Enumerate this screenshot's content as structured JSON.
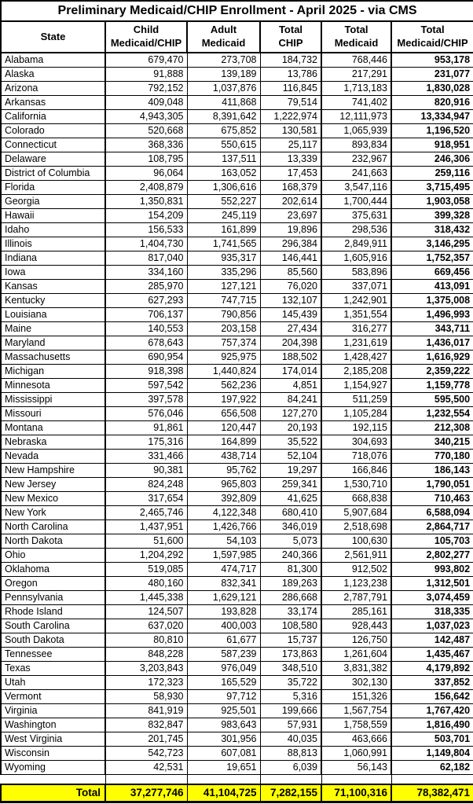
{
  "title": "Preliminary Medicaid/CHIP Enrollment - April 2025 - via CMS",
  "colors": {
    "total_row_bg": "#FFFF00",
    "border": "#000000",
    "background": "#FFFFFF",
    "text": "#000000"
  },
  "chart_data": {
    "type": "table",
    "title": "Preliminary Medicaid/CHIP Enrollment - April 2025 - via CMS",
    "columns": [
      "State",
      "Child Medicaid/CHIP",
      "Adult Medicaid",
      "Total CHIP",
      "Total Medicaid",
      "Total Medicaid/CHIP"
    ],
    "header_lines": [
      [
        "State",
        ""
      ],
      [
        "Child",
        "Medicaid/CHIP"
      ],
      [
        "Adult",
        "Medicaid"
      ],
      [
        "Total",
        "CHIP"
      ],
      [
        "Total",
        "Medicaid"
      ],
      [
        "Total",
        "Medicaid/CHIP"
      ]
    ],
    "rows": [
      [
        "Alabama",
        "679,470",
        "273,708",
        "184,732",
        "768,446",
        "953,178"
      ],
      [
        "Alaska",
        "91,888",
        "139,189",
        "13,786",
        "217,291",
        "231,077"
      ],
      [
        "Arizona",
        "792,152",
        "1,037,876",
        "116,845",
        "1,713,183",
        "1,830,028"
      ],
      [
        "Arkansas",
        "409,048",
        "411,868",
        "79,514",
        "741,402",
        "820,916"
      ],
      [
        "California",
        "4,943,305",
        "8,391,642",
        "1,222,974",
        "12,111,973",
        "13,334,947"
      ],
      [
        "Colorado",
        "520,668",
        "675,852",
        "130,581",
        "1,065,939",
        "1,196,520"
      ],
      [
        "Connecticut",
        "368,336",
        "550,615",
        "25,117",
        "893,834",
        "918,951"
      ],
      [
        "Delaware",
        "108,795",
        "137,511",
        "13,339",
        "232,967",
        "246,306"
      ],
      [
        "District of Columbia",
        "96,064",
        "163,052",
        "17,453",
        "241,663",
        "259,116"
      ],
      [
        "Florida",
        "2,408,879",
        "1,306,616",
        "168,379",
        "3,547,116",
        "3,715,495"
      ],
      [
        "Georgia",
        "1,350,831",
        "552,227",
        "202,614",
        "1,700,444",
        "1,903,058"
      ],
      [
        "Hawaii",
        "154,209",
        "245,119",
        "23,697",
        "375,631",
        "399,328"
      ],
      [
        "Idaho",
        "156,533",
        "161,899",
        "19,896",
        "298,536",
        "318,432"
      ],
      [
        "Illinois",
        "1,404,730",
        "1,741,565",
        "296,384",
        "2,849,911",
        "3,146,295"
      ],
      [
        "Indiana",
        "817,040",
        "935,317",
        "146,441",
        "1,605,916",
        "1,752,357"
      ],
      [
        "Iowa",
        "334,160",
        "335,296",
        "85,560",
        "583,896",
        "669,456"
      ],
      [
        "Kansas",
        "285,970",
        "127,121",
        "76,020",
        "337,071",
        "413,091"
      ],
      [
        "Kentucky",
        "627,293",
        "747,715",
        "132,107",
        "1,242,901",
        "1,375,008"
      ],
      [
        "Louisiana",
        "706,137",
        "790,856",
        "145,439",
        "1,351,554",
        "1,496,993"
      ],
      [
        "Maine",
        "140,553",
        "203,158",
        "27,434",
        "316,277",
        "343,711"
      ],
      [
        "Maryland",
        "678,643",
        "757,374",
        "204,398",
        "1,231,619",
        "1,436,017"
      ],
      [
        "Massachusetts",
        "690,954",
        "925,975",
        "188,502",
        "1,428,427",
        "1,616,929"
      ],
      [
        "Michigan",
        "918,398",
        "1,440,824",
        "174,014",
        "2,185,208",
        "2,359,222"
      ],
      [
        "Minnesota",
        "597,542",
        "562,236",
        "4,851",
        "1,154,927",
        "1,159,778"
      ],
      [
        "Mississippi",
        "397,578",
        "197,922",
        "84,241",
        "511,259",
        "595,500"
      ],
      [
        "Missouri",
        "576,046",
        "656,508",
        "127,270",
        "1,105,284",
        "1,232,554"
      ],
      [
        "Montana",
        "91,861",
        "120,447",
        "20,193",
        "192,115",
        "212,308"
      ],
      [
        "Nebraska",
        "175,316",
        "164,899",
        "35,522",
        "304,693",
        "340,215"
      ],
      [
        "Nevada",
        "331,466",
        "438,714",
        "52,104",
        "718,076",
        "770,180"
      ],
      [
        "New Hampshire",
        "90,381",
        "95,762",
        "19,297",
        "166,846",
        "186,143"
      ],
      [
        "New Jersey",
        "824,248",
        "965,803",
        "259,341",
        "1,530,710",
        "1,790,051"
      ],
      [
        "New Mexico",
        "317,654",
        "392,809",
        "41,625",
        "668,838",
        "710,463"
      ],
      [
        "New York",
        "2,465,746",
        "4,122,348",
        "680,410",
        "5,907,684",
        "6,588,094"
      ],
      [
        "North Carolina",
        "1,437,951",
        "1,426,766",
        "346,019",
        "2,518,698",
        "2,864,717"
      ],
      [
        "North Dakota",
        "51,600",
        "54,103",
        "5,073",
        "100,630",
        "105,703"
      ],
      [
        "Ohio",
        "1,204,292",
        "1,597,985",
        "240,366",
        "2,561,911",
        "2,802,277"
      ],
      [
        "Oklahoma",
        "519,085",
        "474,717",
        "81,300",
        "912,502",
        "993,802"
      ],
      [
        "Oregon",
        "480,160",
        "832,341",
        "189,263",
        "1,123,238",
        "1,312,501"
      ],
      [
        "Pennsylvania",
        "1,445,338",
        "1,629,121",
        "286,668",
        "2,787,791",
        "3,074,459"
      ],
      [
        "Rhode Island",
        "124,507",
        "193,828",
        "33,174",
        "285,161",
        "318,335"
      ],
      [
        "South Carolina",
        "637,020",
        "400,003",
        "108,580",
        "928,443",
        "1,037,023"
      ],
      [
        "South Dakota",
        "80,810",
        "61,677",
        "15,737",
        "126,750",
        "142,487"
      ],
      [
        "Tennessee",
        "848,228",
        "587,239",
        "173,863",
        "1,261,604",
        "1,435,467"
      ],
      [
        "Texas",
        "3,203,843",
        "976,049",
        "348,510",
        "3,831,382",
        "4,179,892"
      ],
      [
        "Utah",
        "172,323",
        "165,529",
        "35,722",
        "302,130",
        "337,852"
      ],
      [
        "Vermont",
        "58,930",
        "97,712",
        "5,316",
        "151,326",
        "156,642"
      ],
      [
        "Virginia",
        "841,919",
        "925,501",
        "199,666",
        "1,567,754",
        "1,767,420"
      ],
      [
        "Washington",
        "832,847",
        "983,643",
        "57,931",
        "1,758,559",
        "1,816,490"
      ],
      [
        "West Virginia",
        "201,745",
        "301,956",
        "40,035",
        "463,666",
        "503,701"
      ],
      [
        "Wisconsin",
        "542,723",
        "607,081",
        "88,813",
        "1,060,991",
        "1,149,804"
      ],
      [
        "Wyoming",
        "42,531",
        "19,651",
        "6,039",
        "56,143",
        "62,182"
      ]
    ],
    "total_row": {
      "label": "Total",
      "values": [
        "37,277,746",
        "41,104,725",
        "7,282,155",
        "71,100,316",
        "78,382,471"
      ]
    }
  }
}
